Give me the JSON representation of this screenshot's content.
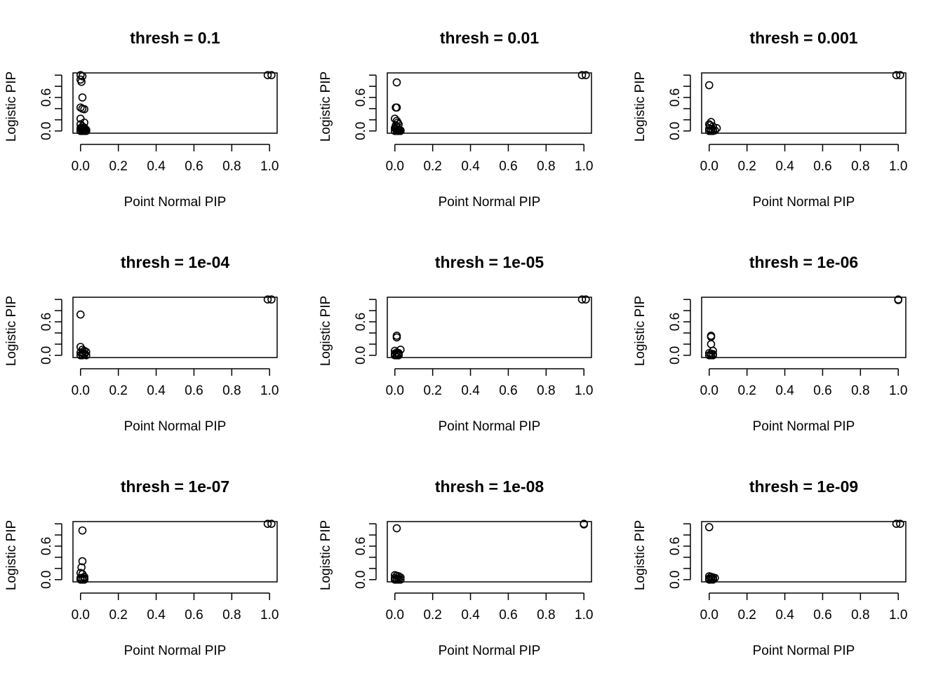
{
  "chart_data": [
    {
      "type": "scatter",
      "title": "thresh =  0.1",
      "xlabel": "Point Normal PIP",
      "ylabel": "Logistic PIP",
      "xlim": [
        -0.04,
        1.04
      ],
      "ylim": [
        -0.04,
        1.04
      ],
      "xticks": [
        "0.0",
        "0.2",
        "0.4",
        "0.6",
        "0.8",
        "1.0"
      ],
      "yticks": [
        "0.0",
        "0.6"
      ],
      "x": [
        0.0,
        0.01,
        0.0,
        0.005,
        0.01,
        0.0,
        0.01,
        0.02,
        0.0,
        0.02,
        0.0,
        0.01,
        0.02,
        0.0,
        0.005,
        0.01,
        0.015,
        0.02,
        0.025,
        0.03,
        0.0,
        0.01,
        0.02,
        0.03,
        0.0,
        0.99,
        1.01
      ],
      "y": [
        1.0,
        0.98,
        0.92,
        0.88,
        0.6,
        0.42,
        0.4,
        0.39,
        0.22,
        0.15,
        0.12,
        0.08,
        0.06,
        0.05,
        0.03,
        0.04,
        0.02,
        0.03,
        0.01,
        0.02,
        0.0,
        0.0,
        0.0,
        0.0,
        0.01,
        1.0,
        1.0
      ]
    },
    {
      "type": "scatter",
      "title": "thresh =  0.01",
      "xlabel": "Point Normal PIP",
      "ylabel": "Logistic PIP",
      "xlim": [
        -0.04,
        1.04
      ],
      "ylim": [
        -0.04,
        1.04
      ],
      "xticks": [
        "0.0",
        "0.2",
        "0.4",
        "0.6",
        "0.8",
        "1.0"
      ],
      "yticks": [
        "0.0",
        "0.6"
      ],
      "x": [
        0.01,
        0.005,
        0.01,
        0.0,
        0.01,
        0.015,
        0.02,
        0.005,
        0.01,
        0.0,
        0.005,
        0.01,
        0.015,
        0.02,
        0.025,
        0.03,
        0.0,
        0.01,
        0.02,
        0.03,
        0.99,
        1.01
      ],
      "y": [
        0.87,
        0.42,
        0.42,
        0.22,
        0.18,
        0.15,
        0.12,
        0.1,
        0.08,
        0.05,
        0.04,
        0.03,
        0.02,
        0.02,
        0.01,
        0.01,
        0.0,
        0.0,
        0.0,
        0.0,
        1.0,
        1.0
      ]
    },
    {
      "type": "scatter",
      "title": "thresh =  0.001",
      "xlabel": "Point Normal PIP",
      "ylabel": "Logistic PIP",
      "xlim": [
        -0.04,
        1.04
      ],
      "ylim": [
        -0.04,
        1.04
      ],
      "xticks": [
        "0.0",
        "0.2",
        "0.4",
        "0.6",
        "0.8",
        "1.0"
      ],
      "yticks": [
        "0.0",
        "0.6"
      ],
      "x": [
        0.0,
        0.01,
        0.0,
        0.005,
        0.02,
        0.04,
        0.0,
        0.01,
        0.02,
        0.03,
        0.0,
        0.01,
        0.02,
        0.99,
        1.01
      ],
      "y": [
        0.82,
        0.16,
        0.12,
        0.1,
        0.08,
        0.05,
        0.04,
        0.03,
        0.02,
        0.01,
        0.0,
        0.0,
        0.0,
        1.0,
        1.0
      ]
    },
    {
      "type": "scatter",
      "title": "thresh =  1e-04",
      "xlabel": "Point Normal PIP",
      "ylabel": "Logistic PIP",
      "xlim": [
        -0.04,
        1.04
      ],
      "ylim": [
        -0.04,
        1.04
      ],
      "xticks": [
        "0.0",
        "0.2",
        "0.4",
        "0.6",
        "0.8",
        "1.0"
      ],
      "yticks": [
        "0.0",
        "0.6"
      ],
      "x": [
        0.0,
        0.0,
        0.01,
        0.02,
        0.03,
        0.0,
        0.01,
        0.02,
        0.0,
        0.01,
        0.02,
        0.03,
        0.99,
        1.01
      ],
      "y": [
        0.73,
        0.15,
        0.1,
        0.08,
        0.06,
        0.05,
        0.04,
        0.03,
        0.0,
        0.0,
        0.01,
        0.0,
        1.0,
        1.0
      ]
    },
    {
      "type": "scatter",
      "title": "thresh =  1e-05",
      "xlabel": "Point Normal PIP",
      "ylabel": "Logistic PIP",
      "xlim": [
        -0.04,
        1.04
      ],
      "ylim": [
        -0.04,
        1.04
      ],
      "xticks": [
        "0.0",
        "0.2",
        "0.4",
        "0.6",
        "0.8",
        "1.0"
      ],
      "yticks": [
        "0.0",
        "0.6"
      ],
      "x": [
        0.01,
        0.01,
        0.03,
        0.0,
        0.01,
        0.02,
        0.0,
        0.01,
        0.02,
        0.0,
        0.01,
        0.02,
        0.99,
        1.01
      ],
      "y": [
        0.35,
        0.32,
        0.1,
        0.08,
        0.05,
        0.04,
        0.03,
        0.02,
        0.02,
        0.0,
        0.0,
        0.0,
        1.0,
        1.0
      ]
    },
    {
      "type": "scatter",
      "title": "thresh =  1e-06",
      "xlabel": "Point Normal PIP",
      "ylabel": "Logistic PIP",
      "xlim": [
        -0.04,
        1.04
      ],
      "ylim": [
        -0.04,
        1.04
      ],
      "xticks": [
        "0.0",
        "0.2",
        "0.4",
        "0.6",
        "0.8",
        "1.0"
      ],
      "yticks": [
        "0.0",
        "0.6"
      ],
      "x": [
        0.01,
        0.01,
        0.01,
        0.02,
        0.0,
        0.01,
        0.02,
        0.0,
        0.01,
        0.02,
        1.0,
        1.0
      ],
      "y": [
        0.35,
        0.33,
        0.2,
        0.08,
        0.04,
        0.03,
        0.02,
        0.0,
        0.0,
        0.0,
        1.0,
        0.99
      ]
    },
    {
      "type": "scatter",
      "title": "thresh =  1e-07",
      "xlabel": "Point Normal PIP",
      "ylabel": "Logistic PIP",
      "xlim": [
        -0.04,
        1.04
      ],
      "ylim": [
        -0.04,
        1.04
      ],
      "xticks": [
        "0.0",
        "0.2",
        "0.4",
        "0.6",
        "0.8",
        "1.0"
      ],
      "yticks": [
        "0.0",
        "0.6"
      ],
      "x": [
        0.01,
        0.01,
        0.005,
        0.0,
        0.01,
        0.02,
        0.0,
        0.01,
        0.02,
        0.0,
        0.01,
        0.02,
        0.99,
        1.01
      ],
      "y": [
        0.88,
        0.33,
        0.22,
        0.12,
        0.1,
        0.05,
        0.03,
        0.02,
        0.02,
        0.0,
        0.0,
        0.0,
        1.0,
        1.0
      ]
    },
    {
      "type": "scatter",
      "title": "thresh =  1e-08",
      "xlabel": "Point Normal PIP",
      "ylabel": "Logistic PIP",
      "xlim": [
        -0.04,
        1.04
      ],
      "ylim": [
        -0.04,
        1.04
      ],
      "xticks": [
        "0.0",
        "0.2",
        "0.4",
        "0.6",
        "0.8",
        "1.0"
      ],
      "yticks": [
        "0.0",
        "0.6"
      ],
      "x": [
        0.01,
        0.0,
        0.01,
        0.02,
        0.03,
        0.0,
        0.01,
        0.02,
        0.0,
        0.01,
        0.02,
        0.03,
        1.0,
        1.0
      ],
      "y": [
        0.92,
        0.08,
        0.07,
        0.06,
        0.04,
        0.03,
        0.02,
        0.02,
        0.0,
        0.0,
        0.0,
        0.0,
        1.0,
        0.99
      ]
    },
    {
      "type": "scatter",
      "title": "thresh =  1e-09",
      "xlabel": "Point Normal PIP",
      "ylabel": "Logistic PIP",
      "xlim": [
        -0.04,
        1.04
      ],
      "ylim": [
        -0.04,
        1.04
      ],
      "xticks": [
        "0.0",
        "0.2",
        "0.4",
        "0.6",
        "0.8",
        "1.0"
      ],
      "yticks": [
        "0.0",
        "0.6"
      ],
      "x": [
        0.0,
        0.0,
        0.01,
        0.02,
        0.03,
        0.0,
        0.01,
        0.02,
        0.0,
        0.01,
        0.02,
        0.99,
        1.01
      ],
      "y": [
        0.94,
        0.06,
        0.05,
        0.04,
        0.03,
        0.02,
        0.02,
        0.01,
        0.0,
        0.0,
        0.0,
        1.0,
        1.0
      ]
    }
  ]
}
